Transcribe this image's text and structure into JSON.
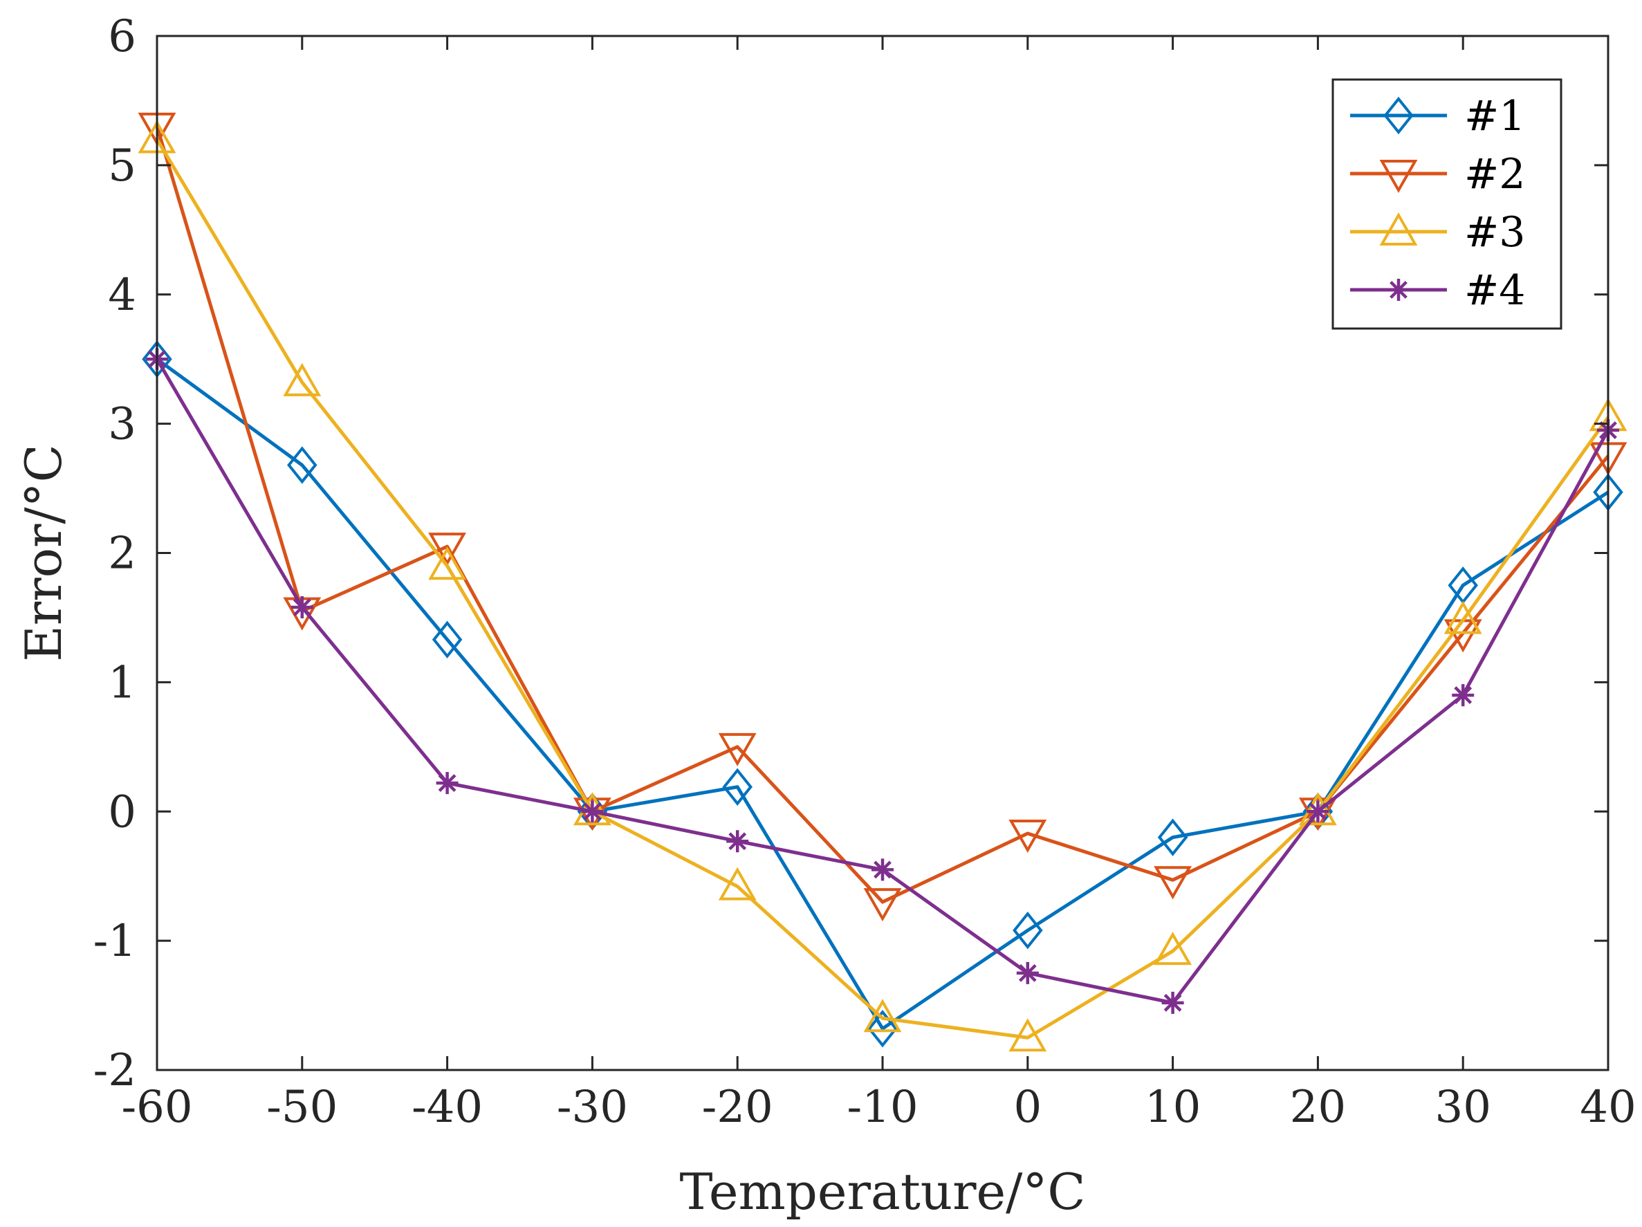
{
  "chart_data": {
    "type": "line",
    "title": "",
    "xlabel": "Temperature/°C",
    "ylabel": "Error/°C",
    "xlim": [
      -60,
      40
    ],
    "ylim": [
      -2,
      6
    ],
    "xticks": [
      -60,
      -50,
      -40,
      -30,
      -20,
      -10,
      0,
      10,
      20,
      30,
      40
    ],
    "yticks": [
      -2,
      -1,
      0,
      1,
      2,
      3,
      4,
      5,
      6
    ],
    "x_tick_labels": [
      "-60",
      "-50",
      "-40",
      "-30",
      "-20",
      "-10",
      "0",
      "10",
      "20",
      "30",
      "40"
    ],
    "y_tick_labels": [
      "-2",
      "-1",
      "0",
      "1",
      "2",
      "3",
      "4",
      "5",
      "6"
    ],
    "grid": false,
    "legend_position": "top-right",
    "x": [
      -60,
      -50,
      -40,
      -30,
      -20,
      -10,
      0,
      10,
      20,
      30,
      40
    ],
    "series": [
      {
        "name": "#1",
        "marker": "diamond",
        "color": "#0072BD",
        "values": [
          3.5,
          2.68,
          1.33,
          0.0,
          0.19,
          -1.68,
          -0.92,
          -0.2,
          0.0,
          1.75,
          2.47
        ]
      },
      {
        "name": "#2",
        "marker": "triangle-down",
        "color": "#D95319",
        "values": [
          5.3,
          1.55,
          2.05,
          0.0,
          0.5,
          -0.7,
          -0.17,
          -0.53,
          0.0,
          1.38,
          2.75
        ]
      },
      {
        "name": "#3",
        "marker": "triangle-up",
        "color": "#EDB120",
        "values": [
          5.2,
          3.32,
          1.9,
          0.0,
          -0.58,
          -1.6,
          -1.75,
          -1.08,
          0.0,
          1.48,
          3.05
        ]
      },
      {
        "name": "#4",
        "marker": "asterisk",
        "color": "#7E2F8E",
        "values": [
          3.5,
          1.58,
          0.22,
          0.0,
          -0.23,
          -0.45,
          -1.25,
          -1.48,
          0.0,
          0.9,
          2.95
        ]
      }
    ]
  }
}
